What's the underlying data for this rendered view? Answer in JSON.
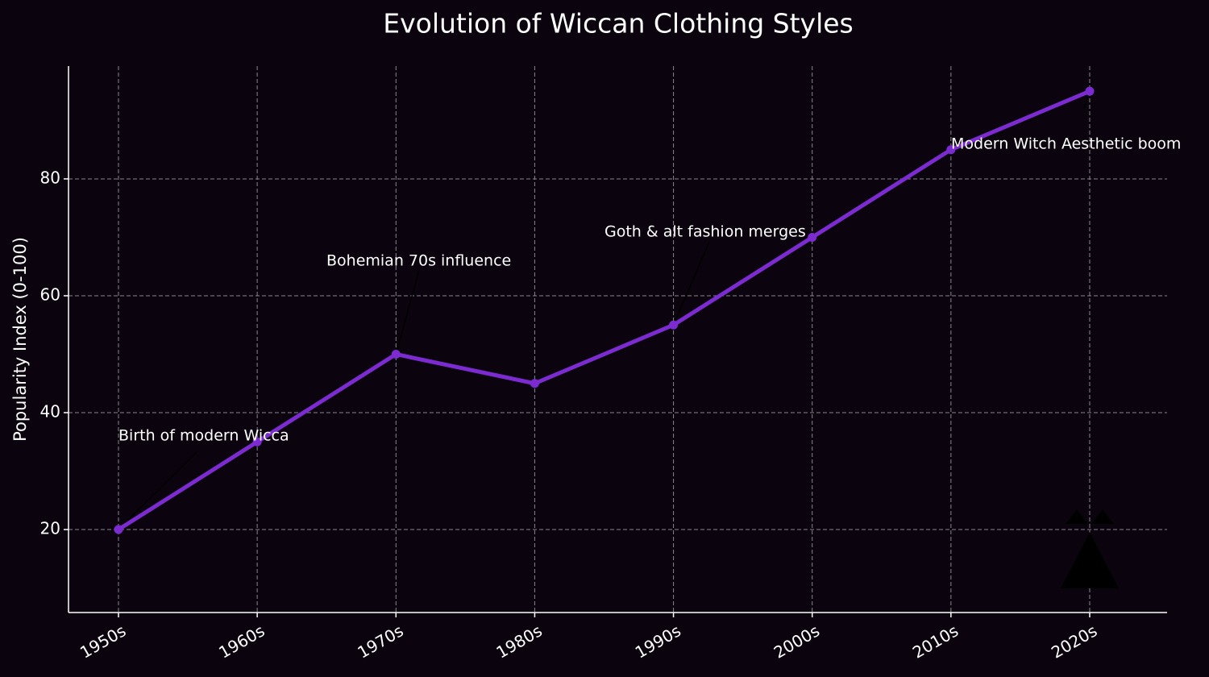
{
  "chart_data": {
    "type": "line",
    "title": "Evolution of Wiccan Clothing Styles",
    "y_label": "Popularity Index (0-100)",
    "categories": [
      "1950s",
      "1960s",
      "1970s",
      "1980s",
      "1990s",
      "2000s",
      "2010s",
      "2020s"
    ],
    "series": [
      {
        "name": "Popularity",
        "color": "#7b2bd0",
        "values": [
          20,
          35,
          50,
          45,
          55,
          70,
          85,
          95
        ]
      }
    ],
    "ylim": [
      5.8,
      99.3
    ],
    "yticks": [
      20,
      40,
      60,
      80
    ],
    "grid": true,
    "annotations": [
      "Birth of modern Wicca",
      "Bohemian 70s influence",
      "Goth & alt fashion merges",
      "Modern Witch Aesthetic boom"
    ]
  }
}
